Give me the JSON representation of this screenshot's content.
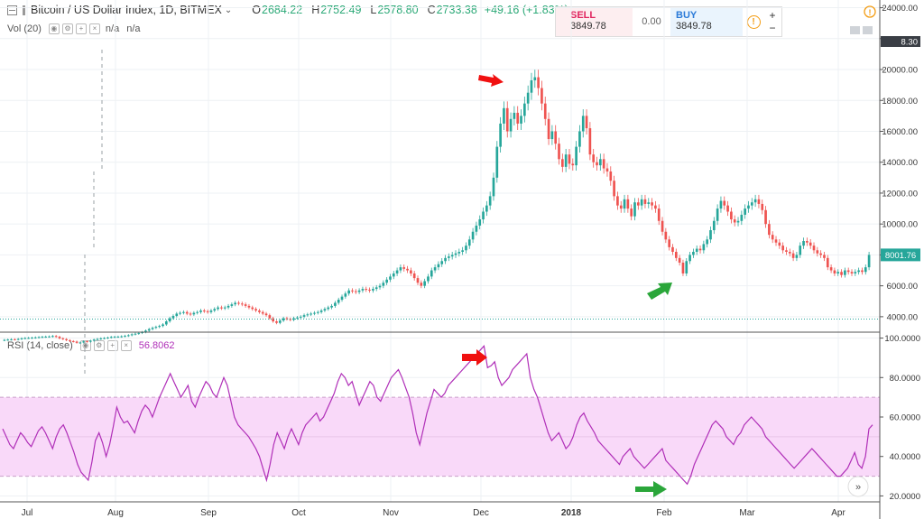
{
  "header": {
    "title": "Bitcoin / US Dollar Index, 1D, BITMEX",
    "open_label": "O",
    "open": "2684.22",
    "high_label": "H",
    "high": "2752.49",
    "low_label": "L",
    "low": "2578.80",
    "close_label": "C",
    "close": "2733.38",
    "change": "+49.16 (+1.83%)"
  },
  "volume_indicator": {
    "label": "Vol (20)",
    "value1": "n/a",
    "value2": "n/a"
  },
  "rsi_indicator": {
    "label": "RSI (14, close)",
    "value": "56.8062"
  },
  "trade_panel": {
    "sell_label": "SELL",
    "sell_price": "3849.78",
    "spread": "0.00",
    "buy_label": "BUY",
    "buy_price": "3849.78",
    "plus": "+",
    "minus": "−"
  },
  "price_scale": {
    "current_price_tag": "8001.76",
    "top_tag": "8.30"
  },
  "colors": {
    "up": "#26a69a",
    "down": "#ef5350",
    "rsi_line": "#b02fb8",
    "rsi_band": "#f9d9f9",
    "arrow_red": "#f01010",
    "arrow_green": "#2aa63a"
  },
  "chart_data": [
    {
      "type": "candlestick",
      "x_ticks": [
        "Jul",
        "Aug",
        "Sep",
        "Oct",
        "Nov",
        "Dec",
        "2018",
        "Feb",
        "Mar",
        "Apr"
      ],
      "y_ticks": [
        "4000.00",
        "6000.00",
        "8000.00",
        "10000.00",
        "12000.00",
        "14000.00",
        "16000.00",
        "18000.00",
        "20000.00",
        "22000.00",
        "24000.00"
      ],
      "ylim": [
        3000,
        24500
      ],
      "last_price": 8001.76,
      "horizontal_line": 3849.78,
      "close_series": [
        2500,
        2520,
        2540,
        2530,
        2560,
        2600,
        2620,
        2630,
        2640,
        2660,
        2680,
        2700,
        2710,
        2720,
        2750,
        2700,
        2600,
        2550,
        2480,
        2420,
        2390,
        2310,
        2330,
        2410,
        2380,
        2450,
        2520,
        2560,
        2600,
        2620,
        2650,
        2690,
        2700,
        2710,
        2730,
        2760,
        2800,
        2860,
        2900,
        2950,
        3000,
        3100,
        3200,
        3280,
        3340,
        3400,
        3500,
        3700,
        3900,
        4050,
        4200,
        4250,
        4300,
        4200,
        4150,
        4250,
        4300,
        4400,
        4350,
        4300,
        4400,
        4500,
        4600,
        4550,
        4600,
        4700,
        4800,
        4900,
        4850,
        4800,
        4700,
        4600,
        4500,
        4400,
        4300,
        4200,
        4100,
        3900,
        3700,
        3600,
        3750,
        3900,
        3850,
        3800,
        3900,
        3950,
        4000,
        4100,
        4150,
        4200,
        4250,
        4300,
        4400,
        4500,
        4600,
        4700,
        4900,
        5100,
        5300,
        5500,
        5700,
        5650,
        5600,
        5700,
        5800,
        5750,
        5700,
        5800,
        5900,
        6000,
        6200,
        6400,
        6600,
        6800,
        7000,
        7200,
        7100,
        7000,
        6800,
        6500,
        6200,
        6000,
        6300,
        6600,
        7000,
        7200,
        7400,
        7600,
        7800,
        7900,
        8000,
        8100,
        8200,
        8300,
        8600,
        9000,
        9500,
        9900,
        10300,
        10800,
        11200,
        11800,
        13000,
        15000,
        16500,
        17500,
        16000,
        16800,
        17200,
        16500,
        17000,
        17800,
        18500,
        19300,
        19500,
        18800,
        17800,
        16800,
        15500,
        16000,
        15200,
        14200,
        13700,
        14500,
        13900,
        13800,
        15000,
        16000,
        17000,
        16200,
        14500,
        14000,
        13800,
        14200,
        13600,
        13400,
        12800,
        11800,
        11200,
        11000,
        11600,
        11000,
        10500,
        11400,
        11200,
        11600,
        11300,
        11400,
        11200,
        11000,
        10200,
        9500,
        9000,
        8500,
        8200,
        7800,
        7500,
        6800,
        7600,
        8000,
        8200,
        8400,
        8300,
        8700,
        9000,
        9600,
        10200,
        11000,
        11500,
        11200,
        10800,
        10300,
        10100,
        10200,
        10600,
        11000,
        11200,
        11400,
        11600,
        11300,
        10900,
        10000,
        9300,
        9000,
        8800,
        8600,
        8300,
        8200,
        8100,
        7800,
        8000,
        8600,
        8900,
        8800,
        8600,
        8300,
        8100,
        8000,
        7800,
        7200,
        7000,
        6800,
        6900,
        6700,
        7000,
        6900,
        6800,
        6900,
        7000,
        6900,
        7200,
        8000
      ],
      "volume_label": "Vol (20)"
    },
    {
      "type": "line",
      "title": "RSI (14, close)",
      "y_ticks": [
        "20.0000",
        "40.0000",
        "60.0000",
        "80.0000",
        "100.0000"
      ],
      "ylim": [
        17,
        103
      ],
      "band": [
        30,
        70
      ],
      "midline": 50,
      "last_value": 56.8062,
      "rsi_series": [
        54,
        50,
        46,
        44,
        48,
        52,
        50,
        47,
        45,
        49,
        53,
        55,
        52,
        48,
        44,
        50,
        54,
        56,
        52,
        47,
        42,
        36,
        32,
        30,
        28,
        37,
        48,
        52,
        47,
        40,
        46,
        55,
        65,
        60,
        57,
        58,
        55,
        52,
        58,
        63,
        66,
        64,
        60,
        65,
        70,
        74,
        78,
        82,
        78,
        74,
        70,
        73,
        76,
        68,
        65,
        70,
        74,
        78,
        76,
        72,
        70,
        75,
        80,
        76,
        68,
        60,
        56,
        54,
        52,
        50,
        47,
        44,
        40,
        34,
        28,
        36,
        46,
        52,
        48,
        44,
        50,
        54,
        50,
        46,
        52,
        56,
        58,
        60,
        62,
        58,
        60,
        64,
        68,
        72,
        78,
        82,
        80,
        76,
        78,
        72,
        66,
        70,
        74,
        78,
        76,
        70,
        68,
        72,
        76,
        80,
        82,
        84,
        80,
        75,
        70,
        62,
        52,
        46,
        54,
        62,
        68,
        74,
        72,
        70,
        72,
        76,
        78,
        80,
        82,
        84,
        86,
        88,
        90,
        92,
        94,
        96,
        85,
        86,
        88,
        80,
        76,
        78,
        80,
        84,
        86,
        88,
        90,
        92,
        80,
        74,
        70,
        64,
        58,
        52,
        48,
        50,
        52,
        48,
        44,
        46,
        50,
        56,
        60,
        62,
        58,
        55,
        52,
        48,
        46,
        44,
        42,
        40,
        38,
        36,
        40,
        42,
        44,
        40,
        38,
        36,
        34,
        36,
        38,
        40,
        42,
        44,
        38,
        36,
        34,
        32,
        30,
        28,
        26,
        30,
        36,
        40,
        44,
        48,
        52,
        56,
        58,
        56,
        54,
        50,
        48,
        46,
        50,
        52,
        56,
        58,
        60,
        58,
        56,
        54,
        50,
        48,
        46,
        44,
        42,
        40,
        38,
        36,
        34,
        36,
        38,
        40,
        42,
        44,
        42,
        40,
        38,
        36,
        34,
        32,
        30,
        30,
        32,
        34,
        38,
        42,
        36,
        34,
        40,
        54,
        56
      ]
    }
  ]
}
